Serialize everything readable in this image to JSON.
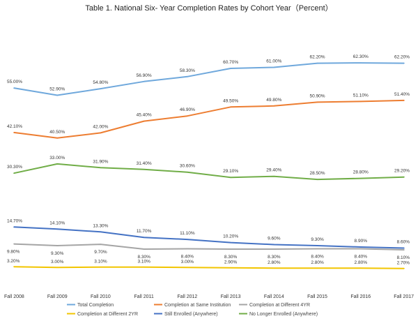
{
  "chart_data": {
    "type": "line",
    "title": "Table 1. National Six- Year Completion Rates by Cohort Year（Percent）",
    "categories": [
      "Fall 2008",
      "Fall 2009",
      "Fall 2010",
      "Fall 2011",
      "Fall 2012",
      "Fall 2013",
      "Fall 2014",
      "Fall 2015",
      "Fall 2016",
      "Fall 2017"
    ],
    "ylim": [
      0,
      70
    ],
    "grid": false,
    "legend_position": "bottom",
    "series": [
      {
        "name": "Total Completion",
        "color": "#6fa8dc",
        "values": [
          55.0,
          52.9,
          54.8,
          56.9,
          58.3,
          60.7,
          61.0,
          62.2,
          62.3,
          62.2
        ],
        "labels": [
          "55.00%",
          "52.90%",
          "54.80%",
          "56.90%",
          "58.30%",
          "60.70%",
          "61.00%",
          "62.20%",
          "62.30%",
          "62.20%"
        ]
      },
      {
        "name": "Completion at Same Institution",
        "color": "#ed7d31",
        "values": [
          42.1,
          40.5,
          42.0,
          45.4,
          46.9,
          49.5,
          49.8,
          50.9,
          51.1,
          51.4
        ],
        "labels": [
          "42.10%",
          "40.50%",
          "42.00%",
          "45.40%",
          "46.90%",
          "49.50%",
          "49.80%",
          "50.90%",
          "51.10%",
          "51.40%"
        ]
      },
      {
        "name": "Completion at Different 4YR",
        "color": "#a5a5a5",
        "values": [
          9.8,
          9.3,
          9.7,
          8.3,
          8.4,
          8.3,
          8.3,
          8.4,
          8.4,
          8.1
        ],
        "labels": [
          "9.80%",
          "9.30%",
          "9.70%",
          "8.30%",
          "8.40%",
          "8.30%",
          "8.30%",
          "8.40%",
          "8.40%",
          "8.10%"
        ]
      },
      {
        "name": "Completion at Different 2YR",
        "color": "#f2c500",
        "values": [
          3.2,
          3.0,
          3.1,
          3.1,
          3.0,
          2.9,
          2.8,
          2.8,
          2.8,
          2.7
        ],
        "labels": [
          "3.20%",
          "3.00%",
          "3.10%",
          "3.10%",
          "3.00%",
          "2.90%",
          "2.80%",
          "2.80%",
          "2.80%",
          "2.70%"
        ]
      },
      {
        "name": "Still Enrolled (Anywhere)",
        "color": "#4472c4",
        "values": [
          14.7,
          14.1,
          13.3,
          11.7,
          11.1,
          10.2,
          9.6,
          9.3,
          8.9,
          8.6
        ],
        "labels": [
          "14.70%",
          "14.10%",
          "13.30%",
          "11.70%",
          "11.10%",
          "10.20%",
          "9.60%",
          "9.30%",
          "8.90%",
          "8.60%"
        ]
      },
      {
        "name": "No Longer Enrolled (Anywhere)",
        "color": "#70ad47",
        "values": [
          30.3,
          33.0,
          31.9,
          31.4,
          30.6,
          29.1,
          29.4,
          28.5,
          28.8,
          29.2
        ],
        "labels": [
          "30.30%",
          "33.00%",
          "31.90%",
          "31.40%",
          "30.60%",
          "29.10%",
          "29.40%",
          "28.50%",
          "28.80%",
          "29.20%"
        ]
      }
    ]
  }
}
